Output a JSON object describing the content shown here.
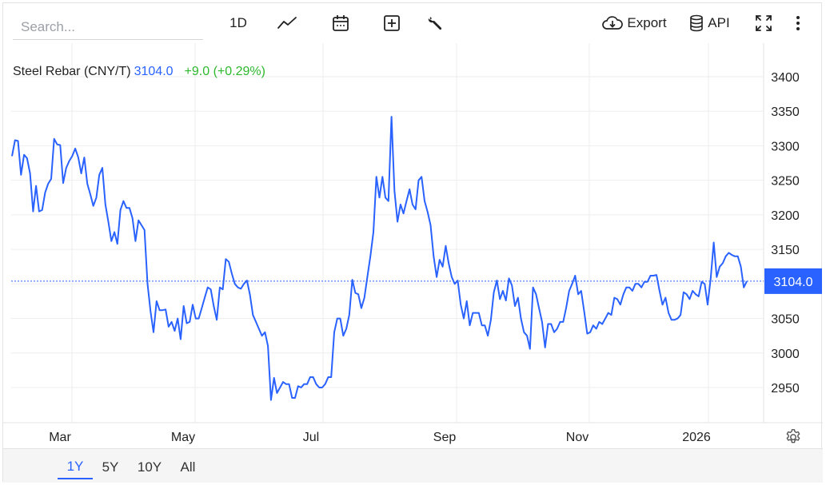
{
  "toolbar": {
    "search_placeholder": "Search...",
    "interval_label": "1D",
    "chart_type_icon": "line-chart-icon",
    "calendar_icon": "calendar-icon",
    "add_icon": "plus-square-icon",
    "settings_icon": "wrench-icon",
    "export_label": "Export",
    "export_icon": "cloud-download-icon",
    "api_label": "API",
    "api_icon": "database-icon",
    "fullscreen_icon": "expand-icon",
    "more_icon": "vertical-dots-icon"
  },
  "legend": {
    "name": "Steel Rebar (CNY/T)",
    "price": "3104.0",
    "change": "+9.0 (+0.29%)"
  },
  "colors": {
    "line": "#2962ff",
    "last_price_bg": "#2962ff",
    "change_positive": "#2eb82e",
    "grid": "#eeeeee"
  },
  "ranges": [
    {
      "label": "1Y",
      "active": true
    },
    {
      "label": "5Y",
      "active": false
    },
    {
      "label": "10Y",
      "active": false
    },
    {
      "label": "All",
      "active": false
    }
  ],
  "gear_icon": "gear-icon",
  "chart_data": {
    "type": "line",
    "title": "",
    "xlabel": "",
    "ylabel": "",
    "x_tick_labels": [
      "Mar",
      "May",
      "Jul",
      "Sep",
      "Nov",
      "2026"
    ],
    "y_tick_labels": [
      "2950",
      "3000",
      "3050",
      "3100",
      "3150",
      "3200",
      "3250",
      "3300",
      "3350",
      "3400"
    ],
    "ylim": [
      2900,
      3420
    ],
    "last_value": 3104.0,
    "last_value_label": "3104.0",
    "grid": true,
    "series": [
      {
        "values": [
          3285,
          3308,
          3307,
          3258,
          3287,
          3282,
          3260,
          3205,
          3242,
          3205,
          3207,
          3232,
          3245,
          3252,
          3310,
          3302,
          3301,
          3246,
          3268,
          3278,
          3285,
          3296,
          3283,
          3260,
          3283,
          3245,
          3230,
          3213,
          3225,
          3258,
          3268,
          3215,
          3190,
          3162,
          3175,
          3158,
          3207,
          3220,
          3210,
          3210,
          3195,
          3162,
          3192,
          3185,
          3178,
          3100,
          3060,
          3030,
          3075,
          3062,
          3062,
          3063,
          3038,
          3045,
          3032,
          3050,
          3020,
          3068,
          3043,
          3045,
          3070,
          3050,
          3050,
          3065,
          3080,
          3095,
          3092,
          3068,
          3048,
          3095,
          3092,
          3136,
          3132,
          3115,
          3100,
          3095,
          3093,
          3100,
          3105,
          3085,
          3055,
          3045,
          3035,
          3025,
          3030,
          3010,
          2932,
          2964,
          2942,
          2950,
          2958,
          2955,
          2955,
          2935,
          2935,
          2952,
          2950,
          2955,
          2955,
          2965,
          2965,
          2955,
          2950,
          2950,
          2955,
          2965,
          2965,
          3030,
          3050,
          3050,
          3025,
          3035,
          3055,
          3106,
          3087,
          3085,
          3065,
          3080,
          3110,
          3140,
          3175,
          3255,
          3225,
          3255,
          3225,
          3220,
          3342,
          3235,
          3190,
          3215,
          3202,
          3220,
          3237,
          3215,
          3208,
          3250,
          3255,
          3220,
          3204,
          3185,
          3140,
          3110,
          3135,
          3125,
          3155,
          3130,
          3110,
          3100,
          3105,
          3070,
          3050,
          3075,
          3040,
          3058,
          3058,
          3058,
          3040,
          3040,
          3025,
          3048,
          3088,
          3105,
          3078,
          3090,
          3076,
          3108,
          3098,
          3068,
          3080,
          3050,
          3030,
          3025,
          3006,
          3095,
          3085,
          3065,
          3045,
          3008,
          3042,
          3042,
          3030,
          3035,
          3045,
          3045,
          3065,
          3090,
          3100,
          3112,
          3085,
          3090,
          3060,
          3028,
          3030,
          3040,
          3035,
          3045,
          3042,
          3050,
          3058,
          3055,
          3080,
          3078,
          3070,
          3085,
          3095,
          3095,
          3090,
          3100,
          3100,
          3095,
          3103,
          3103,
          3112,
          3112,
          3113,
          3090,
          3070,
          3080,
          3058,
          3048,
          3048,
          3050,
          3055,
          3088,
          3085,
          3078,
          3090,
          3085,
          3082,
          3103,
          3100,
          3070,
          3108,
          3160,
          3110,
          3125,
          3130,
          3140,
          3145,
          3142,
          3140,
          3140,
          3125,
          3095,
          3104
        ]
      }
    ]
  }
}
